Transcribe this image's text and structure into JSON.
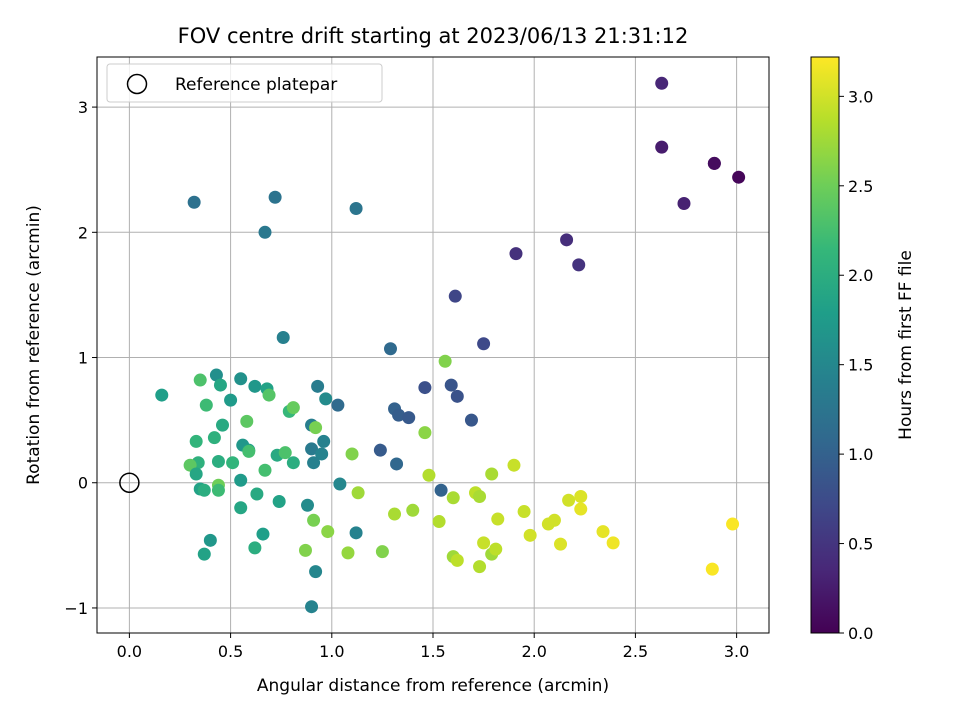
{
  "chart_data": {
    "type": "scatter",
    "title": "FOV centre drift starting at 2023/06/13 21:31:12",
    "xlabel": "Angular distance from reference (arcmin)",
    "ylabel": "Rotation from reference (arcmin)",
    "xlim": [
      -0.16,
      3.16
    ],
    "ylim": [
      -1.2,
      3.4
    ],
    "x_ticks": [
      0.0,
      0.5,
      1.0,
      1.5,
      2.0,
      2.5,
      3.0
    ],
    "x_tick_labels": [
      "0.0",
      "0.5",
      "1.0",
      "1.5",
      "2.0",
      "2.5",
      "3.0"
    ],
    "y_ticks": [
      -1,
      0,
      1,
      2,
      3
    ],
    "y_tick_labels": [
      "−1",
      "0",
      "1",
      "2",
      "3"
    ],
    "grid": true,
    "legend": {
      "placement": "top-left",
      "entries": [
        {
          "label": "Reference platepar",
          "marker": "open-circle"
        }
      ]
    },
    "reference_point": {
      "x": 0.0,
      "y": 0.0
    },
    "colorbar": {
      "label": "Hours from first FF file",
      "colormap": "viridis",
      "range": [
        0.0,
        3.22
      ],
      "ticks": [
        0.0,
        0.5,
        1.0,
        1.5,
        2.0,
        2.5,
        3.0
      ],
      "tick_labels": [
        "0.0",
        "0.5",
        "1.0",
        "1.5",
        "2.0",
        "2.5",
        "3.0"
      ],
      "colors": [
        "#440154",
        "#482878",
        "#3e4989",
        "#31688e",
        "#26828e",
        "#1f9e89",
        "#35b779",
        "#6ece58",
        "#b5de2b",
        "#fde725"
      ]
    },
    "points": [
      {
        "x": 2.63,
        "y": 3.19,
        "c": 0.35
      },
      {
        "x": 2.63,
        "y": 2.68,
        "c": 0.25
      },
      {
        "x": 2.89,
        "y": 2.55,
        "c": 0.15
      },
      {
        "x": 2.89,
        "y": 2.55,
        "c": 0.1
      },
      {
        "x": 3.01,
        "y": 2.44,
        "c": 0.05
      },
      {
        "x": 2.74,
        "y": 2.23,
        "c": 0.3
      },
      {
        "x": 2.16,
        "y": 1.94,
        "c": 0.42
      },
      {
        "x": 1.91,
        "y": 1.83,
        "c": 0.45
      },
      {
        "x": 2.22,
        "y": 1.74,
        "c": 0.48
      },
      {
        "x": 1.61,
        "y": 1.49,
        "c": 0.68
      },
      {
        "x": 1.75,
        "y": 1.11,
        "c": 0.72
      },
      {
        "x": 1.29,
        "y": 1.07,
        "c": 1.1
      },
      {
        "x": 1.46,
        "y": 0.76,
        "c": 0.8
      },
      {
        "x": 1.59,
        "y": 0.78,
        "c": 0.85
      },
      {
        "x": 1.62,
        "y": 0.69,
        "c": 0.82
      },
      {
        "x": 1.69,
        "y": 0.5,
        "c": 0.88
      },
      {
        "x": 1.31,
        "y": 0.59,
        "c": 1.0
      },
      {
        "x": 1.33,
        "y": 0.54,
        "c": 0.95
      },
      {
        "x": 1.38,
        "y": 0.52,
        "c": 0.9
      },
      {
        "x": 1.24,
        "y": 0.26,
        "c": 0.92
      },
      {
        "x": 1.32,
        "y": 0.15,
        "c": 1.08
      },
      {
        "x": 1.54,
        "y": -0.06,
        "c": 1.02
      },
      {
        "x": 1.03,
        "y": 0.62,
        "c": 1.12
      },
      {
        "x": 0.32,
        "y": 2.24,
        "c": 1.2
      },
      {
        "x": 0.72,
        "y": 2.28,
        "c": 1.22
      },
      {
        "x": 1.12,
        "y": 2.19,
        "c": 1.25
      },
      {
        "x": 0.67,
        "y": 2.0,
        "c": 1.3
      },
      {
        "x": 0.76,
        "y": 1.16,
        "c": 1.4
      },
      {
        "x": 0.93,
        "y": 0.77,
        "c": 1.35
      },
      {
        "x": 0.9,
        "y": 0.46,
        "c": 1.38
      },
      {
        "x": 0.96,
        "y": 0.33,
        "c": 1.42
      },
      {
        "x": 0.9,
        "y": 0.27,
        "c": 1.32
      },
      {
        "x": 0.95,
        "y": 0.23,
        "c": 1.45
      },
      {
        "x": 0.91,
        "y": 0.16,
        "c": 1.4
      },
      {
        "x": 1.04,
        "y": -0.01,
        "c": 1.5
      },
      {
        "x": 1.12,
        "y": -0.4,
        "c": 1.43
      },
      {
        "x": 0.92,
        "y": -0.71,
        "c": 1.48
      },
      {
        "x": 0.9,
        "y": -0.99,
        "c": 1.45
      },
      {
        "x": 0.88,
        "y": -0.18,
        "c": 1.55
      },
      {
        "x": 0.16,
        "y": 0.7,
        "c": 1.8
      },
      {
        "x": 0.35,
        "y": 0.82,
        "c": 2.3
      },
      {
        "x": 0.43,
        "y": 0.86,
        "c": 1.6
      },
      {
        "x": 0.45,
        "y": 0.78,
        "c": 1.9
      },
      {
        "x": 0.55,
        "y": 0.83,
        "c": 1.62
      },
      {
        "x": 0.62,
        "y": 0.77,
        "c": 1.7
      },
      {
        "x": 0.68,
        "y": 0.75,
        "c": 1.85
      },
      {
        "x": 0.69,
        "y": 0.7,
        "c": 2.35
      },
      {
        "x": 0.38,
        "y": 0.62,
        "c": 2.2
      },
      {
        "x": 0.5,
        "y": 0.66,
        "c": 1.75
      },
      {
        "x": 0.58,
        "y": 0.49,
        "c": 2.4
      },
      {
        "x": 0.46,
        "y": 0.46,
        "c": 1.95
      },
      {
        "x": 0.42,
        "y": 0.36,
        "c": 2.05
      },
      {
        "x": 0.33,
        "y": 0.33,
        "c": 2.1
      },
      {
        "x": 0.56,
        "y": 0.3,
        "c": 1.7
      },
      {
        "x": 0.59,
        "y": 0.26,
        "c": 1.8
      },
      {
        "x": 0.59,
        "y": 0.25,
        "c": 2.25
      },
      {
        "x": 0.73,
        "y": 0.22,
        "c": 1.95
      },
      {
        "x": 0.77,
        "y": 0.24,
        "c": 2.3
      },
      {
        "x": 0.79,
        "y": 0.57,
        "c": 2.15
      },
      {
        "x": 0.81,
        "y": 0.6,
        "c": 2.45
      },
      {
        "x": 0.92,
        "y": 0.44,
        "c": 2.55
      },
      {
        "x": 0.97,
        "y": 0.67,
        "c": 1.55
      },
      {
        "x": 0.81,
        "y": 0.16,
        "c": 2.0
      },
      {
        "x": 0.67,
        "y": 0.1,
        "c": 2.25
      },
      {
        "x": 0.51,
        "y": 0.16,
        "c": 2.1
      },
      {
        "x": 0.44,
        "y": 0.17,
        "c": 2.0
      },
      {
        "x": 0.34,
        "y": 0.16,
        "c": 2.05
      },
      {
        "x": 0.3,
        "y": 0.14,
        "c": 2.4
      },
      {
        "x": 0.33,
        "y": 0.07,
        "c": 1.9
      },
      {
        "x": 0.55,
        "y": 0.02,
        "c": 1.75
      },
      {
        "x": 0.44,
        "y": -0.02,
        "c": 2.5
      },
      {
        "x": 0.44,
        "y": -0.06,
        "c": 2.2
      },
      {
        "x": 0.35,
        "y": -0.05,
        "c": 1.85
      },
      {
        "x": 0.37,
        "y": -0.06,
        "c": 2.0
      },
      {
        "x": 0.63,
        "y": -0.09,
        "c": 1.95
      },
      {
        "x": 0.74,
        "y": -0.15,
        "c": 1.85
      },
      {
        "x": 0.55,
        "y": -0.2,
        "c": 1.9
      },
      {
        "x": 0.66,
        "y": -0.41,
        "c": 1.8
      },
      {
        "x": 0.4,
        "y": -0.46,
        "c": 1.7
      },
      {
        "x": 0.37,
        "y": -0.57,
        "c": 1.85
      },
      {
        "x": 0.62,
        "y": -0.52,
        "c": 2.0
      },
      {
        "x": 0.87,
        "y": -0.54,
        "c": 2.6
      },
      {
        "x": 0.91,
        "y": -0.3,
        "c": 2.55
      },
      {
        "x": 0.98,
        "y": -0.39,
        "c": 2.65
      },
      {
        "x": 1.1,
        "y": 0.23,
        "c": 2.6
      },
      {
        "x": 1.13,
        "y": -0.08,
        "c": 2.75
      },
      {
        "x": 1.08,
        "y": -0.56,
        "c": 2.7
      },
      {
        "x": 1.25,
        "y": -0.55,
        "c": 2.6
      },
      {
        "x": 1.31,
        "y": -0.25,
        "c": 2.8
      },
      {
        "x": 1.4,
        "y": -0.22,
        "c": 2.75
      },
      {
        "x": 1.56,
        "y": 0.97,
        "c": 2.6
      },
      {
        "x": 1.46,
        "y": 0.4,
        "c": 2.65
      },
      {
        "x": 1.48,
        "y": 0.06,
        "c": 2.85
      },
      {
        "x": 1.53,
        "y": -0.31,
        "c": 2.85
      },
      {
        "x": 1.6,
        "y": -0.12,
        "c": 2.8
      },
      {
        "x": 1.6,
        "y": -0.59,
        "c": 2.75
      },
      {
        "x": 1.62,
        "y": -0.62,
        "c": 2.9
      },
      {
        "x": 1.71,
        "y": -0.08,
        "c": 2.9
      },
      {
        "x": 1.73,
        "y": -0.11,
        "c": 2.8
      },
      {
        "x": 1.73,
        "y": -0.67,
        "c": 2.85
      },
      {
        "x": 1.75,
        "y": -0.48,
        "c": 2.95
      },
      {
        "x": 1.79,
        "y": -0.57,
        "c": 2.75
      },
      {
        "x": 1.79,
        "y": 0.07,
        "c": 2.8
      },
      {
        "x": 1.81,
        "y": -0.53,
        "c": 2.9
      },
      {
        "x": 1.82,
        "y": -0.29,
        "c": 2.95
      },
      {
        "x": 1.9,
        "y": 0.14,
        "c": 2.95
      },
      {
        "x": 1.95,
        "y": -0.23,
        "c": 2.95
      },
      {
        "x": 1.98,
        "y": -0.42,
        "c": 3.0
      },
      {
        "x": 2.07,
        "y": -0.33,
        "c": 3.0
      },
      {
        "x": 2.1,
        "y": -0.3,
        "c": 3.0
      },
      {
        "x": 2.13,
        "y": -0.49,
        "c": 3.05
      },
      {
        "x": 2.17,
        "y": -0.14,
        "c": 3.0
      },
      {
        "x": 2.23,
        "y": -0.11,
        "c": 3.05
      },
      {
        "x": 2.23,
        "y": -0.21,
        "c": 3.1
      },
      {
        "x": 2.34,
        "y": -0.39,
        "c": 3.1
      },
      {
        "x": 2.39,
        "y": -0.48,
        "c": 3.15
      },
      {
        "x": 2.88,
        "y": -0.69,
        "c": 3.2
      },
      {
        "x": 2.98,
        "y": -0.33,
        "c": 3.2
      }
    ]
  }
}
